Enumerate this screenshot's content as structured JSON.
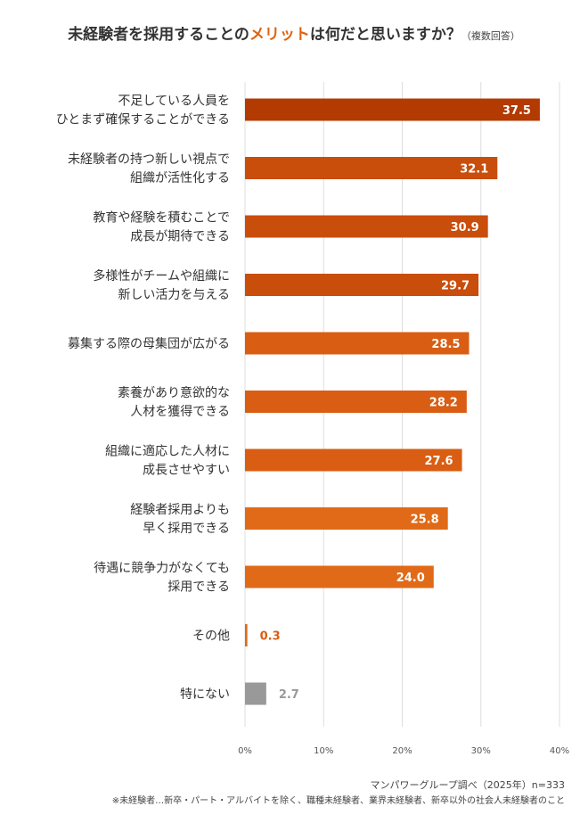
{
  "title": {
    "prefix": "未経験者を採用することの",
    "accent": "メリット",
    "suffix": "は何だと思いますか？",
    "note": "（複数回答）"
  },
  "colors": {
    "bar_dark": "#b33a00",
    "bar_mid": "#c94d0b",
    "bar_orange": "#d95d12",
    "bar_light": "#e06a17",
    "bar_gray": "#999999",
    "grid": "#dddddd",
    "label_gray": "#999999",
    "label_orange": "#d95d12"
  },
  "chart_data": {
    "type": "bar",
    "orientation": "horizontal",
    "categories": [
      [
        "不足している人員を",
        "ひとまず確保することができる"
      ],
      [
        "未経験者の持つ新しい視点で",
        "組織が活性化する"
      ],
      [
        "教育や経験を積むことで",
        "成長が期待できる"
      ],
      [
        "多様性がチームや組織に",
        "新しい活力を与える"
      ],
      [
        "募集する際の母集団が広がる"
      ],
      [
        "素養があり意欲的な",
        "人材を獲得できる"
      ],
      [
        "組織に適応した人材に",
        "成長させやすい"
      ],
      [
        "経験者採用よりも",
        "早く採用できる"
      ],
      [
        "待遇に競争力がなくても",
        "採用できる"
      ],
      [
        "その他"
      ],
      [
        "特にない"
      ]
    ],
    "values": [
      37.5,
      32.1,
      30.9,
      29.7,
      28.5,
      28.2,
      27.6,
      25.8,
      24.0,
      0.3,
      2.7
    ],
    "value_labels": [
      "37.5",
      "32.1",
      "30.9",
      "29.7",
      "28.5",
      "28.2",
      "27.6",
      "25.8",
      "24.0",
      "0.3",
      "2.7"
    ],
    "xlim": [
      0,
      40
    ],
    "xticks": [
      0,
      10,
      20,
      30,
      40
    ],
    "xtick_labels": [
      "0%",
      "10%",
      "20%",
      "30%",
      "40%"
    ],
    "grid": true
  },
  "footer": {
    "source": "マンパワーグループ調べ（2025年）n=333",
    "note": "※未経験者…新卒・パート・アルバイトを除く、職種未経験者、業界未経験者、新卒以外の社会人未経験者のこと"
  }
}
